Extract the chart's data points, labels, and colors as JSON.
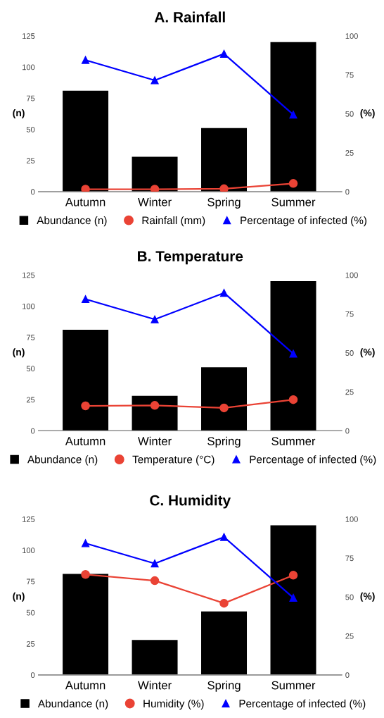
{
  "chart_data": [
    {
      "type": "bar",
      "title": "A. Rainfall",
      "categories": [
        "Autumn",
        "Winter",
        "Spring",
        "Summer"
      ],
      "ylabel": "(n)",
      "y2label": "(%)",
      "ylim": [
        0,
        125
      ],
      "yticks": [
        0,
        25,
        50,
        75,
        100,
        125
      ],
      "y2lim": [
        0,
        100
      ],
      "y2ticks": [
        0,
        25,
        50,
        75,
        100
      ],
      "grid": false,
      "legend": "bottom",
      "series": [
        {
          "name": "Abundance (n)",
          "color": "#000000",
          "marker": "square",
          "values": [
            81,
            28,
            51,
            120
          ]
        },
        {
          "name": "Rainfall (mm)",
          "type": "line",
          "axis": "y2",
          "color": "#ea4335",
          "marker": "circle",
          "values": [
            1.6,
            1.6,
            1.9,
            5.3
          ]
        },
        {
          "name": "Percentage of infected (%)",
          "type": "line",
          "axis": "y2",
          "color": "#0000ff",
          "marker": "triangle",
          "values": [
            84.5,
            71.5,
            88.5,
            49.5
          ]
        }
      ]
    },
    {
      "type": "bar",
      "title": "B. Temperature",
      "categories": [
        "Autumn",
        "Winter",
        "Spring",
        "Summer"
      ],
      "ylabel": "(n)",
      "y2label": "(%)",
      "ylim": [
        0,
        125
      ],
      "yticks": [
        0,
        25,
        50,
        75,
        100,
        125
      ],
      "y2lim": [
        0,
        100
      ],
      "y2ticks": [
        0,
        25,
        50,
        75,
        100
      ],
      "grid": false,
      "legend": "bottom",
      "series": [
        {
          "name": "Abundance (n)",
          "color": "#000000",
          "marker": "square",
          "values": [
            81,
            28,
            51,
            120
          ]
        },
        {
          "name": "Temperature (°C)",
          "type": "line",
          "axis": "y2",
          "color": "#ea4335",
          "marker": "circle",
          "values": [
            16,
            16.3,
            14.7,
            20
          ]
        },
        {
          "name": "Percentage of infected (%)",
          "type": "line",
          "axis": "y2",
          "color": "#0000ff",
          "marker": "triangle",
          "values": [
            84.5,
            71.5,
            88.5,
            49.5
          ]
        }
      ]
    },
    {
      "type": "bar",
      "title": "C. Humidity",
      "categories": [
        "Autumn",
        "Winter",
        "Spring",
        "Summer"
      ],
      "ylabel": "(n)",
      "y2label": "(%)",
      "ylim": [
        0,
        125
      ],
      "yticks": [
        0,
        25,
        50,
        75,
        100,
        125
      ],
      "y2lim": [
        0,
        100
      ],
      "y2ticks": [
        0,
        25,
        50,
        75,
        100
      ],
      "grid": false,
      "legend": "bottom",
      "series": [
        {
          "name": "Abundance (n)",
          "color": "#000000",
          "marker": "square",
          "values": [
            81,
            28,
            51,
            120
          ]
        },
        {
          "name": "Humidity (%)",
          "type": "line",
          "axis": "y2",
          "color": "#ea4335",
          "marker": "circle",
          "values": [
            64.5,
            60.5,
            46,
            64
          ]
        },
        {
          "name": "Percentage of infected (%)",
          "type": "line",
          "axis": "y2",
          "color": "#0000ff",
          "marker": "triangle",
          "values": [
            84.5,
            71.5,
            88.5,
            49.5
          ]
        }
      ]
    }
  ]
}
